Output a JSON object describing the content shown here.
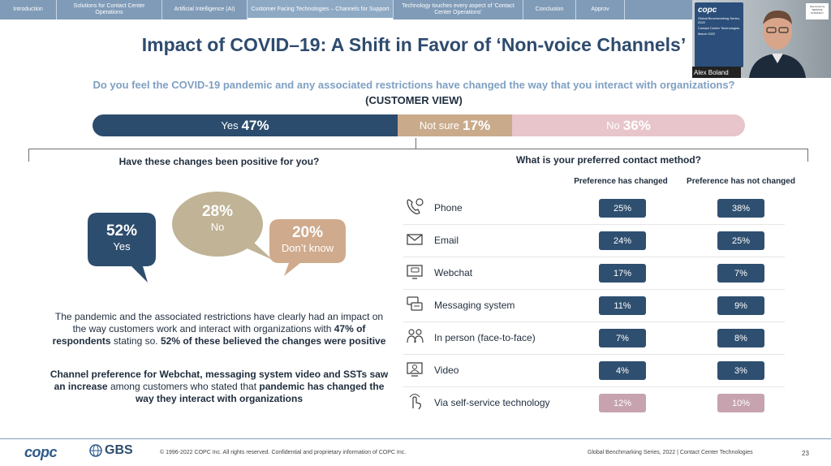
{
  "nav": {
    "tabs": [
      {
        "label": "Introduction",
        "width": 70
      },
      {
        "label": "Solutions for Contact Center Operations",
        "width": 130
      },
      {
        "label": "Artificial Intelligence (AI)",
        "width": 105
      },
      {
        "label": "Customer Facing Technologies – Channels for Support",
        "width": 180,
        "active": true
      },
      {
        "label": "Technology touches every aspect of 'Contact Center Operations'",
        "width": 160
      },
      {
        "label": "Conclusion",
        "width": 65
      },
      {
        "label": "Approv",
        "width": 60
      }
    ]
  },
  "title": "Impact of COVID–19: A Shift in Favor of ‘Non-voice Channels’",
  "question": "Do you feel the COVID-19 pandemic and any associated restrictions have changed the way that you interact with organizations?",
  "subquestion": "(CUSTOMER VIEW)",
  "stack": {
    "yes": {
      "label": "Yes",
      "value": "47%"
    },
    "not_sure": {
      "label": "Not sure",
      "value": "17%"
    },
    "no": {
      "label": "No",
      "value": "36%"
    }
  },
  "left": {
    "question": "Have these changes been positive for you?",
    "bubbles": [
      {
        "pct": "52%",
        "label": "Yes",
        "color": "#2d4d6e"
      },
      {
        "pct": "28%",
        "label": "No",
        "color": "#c0b396"
      },
      {
        "pct": "20%",
        "label": "Don’t know",
        "color": "#cfaa8c"
      }
    ],
    "para1_a": "The pandemic and the associated restrictions have clearly had an impact on the way customers work and interact with organizations with ",
    "para1_b": "47% of respondents",
    "para1_c": " stating so. ",
    "para1_d": "52% of these believed the changes were positive",
    "para2_a": "Channel preference for Webchat, messaging system video and SSTs saw an increase",
    "para2_b": " among customers who stated that ",
    "para2_c": "pandemic has changed the way they interact with organizations"
  },
  "right": {
    "question": "What is your preferred contact method?",
    "col1": "Preference has changed",
    "col2": "Preference has not changed",
    "rows": [
      {
        "icon": "phone-icon",
        "label": "Phone",
        "changed": "25%",
        "not_changed": "38%",
        "style": "dark"
      },
      {
        "icon": "email-icon",
        "label": "Email",
        "changed": "24%",
        "not_changed": "25%",
        "style": "dark"
      },
      {
        "icon": "webchat-icon",
        "label": "Webchat",
        "changed": "17%",
        "not_changed": "7%",
        "style": "dark"
      },
      {
        "icon": "messaging-icon",
        "label": "Messaging system",
        "changed": "11%",
        "not_changed": "9%",
        "style": "dark"
      },
      {
        "icon": "in-person-icon",
        "label": "In person (face-to-face)",
        "changed": "7%",
        "not_changed": "8%",
        "style": "dark"
      },
      {
        "icon": "video-icon",
        "label": "Video",
        "changed": "4%",
        "not_changed": "3%",
        "style": "dark"
      },
      {
        "icon": "self-service-icon",
        "label": "Via self-service technology",
        "changed": "12%",
        "not_changed": "10%",
        "style": "light"
      }
    ]
  },
  "footer": {
    "copc_logo": "copc",
    "gbs_logo": "GBS",
    "copyright": "© 1996-2022 COPC Inc. All rights reserved. Confidential and proprietary information of COPC Inc.",
    "series": "Global Benchmarking Series, 2022  |  Contact Center Technologies",
    "page": "23"
  },
  "video": {
    "name": "Alex Boland",
    "card_logo": "copc",
    "card_line1": "Global Benchmarking Series, 2022",
    "card_line2": "Contact Center Technologies",
    "card_line3": "March 2022",
    "sponsor": "Sponsored by SERVICE STRATEGY"
  }
}
